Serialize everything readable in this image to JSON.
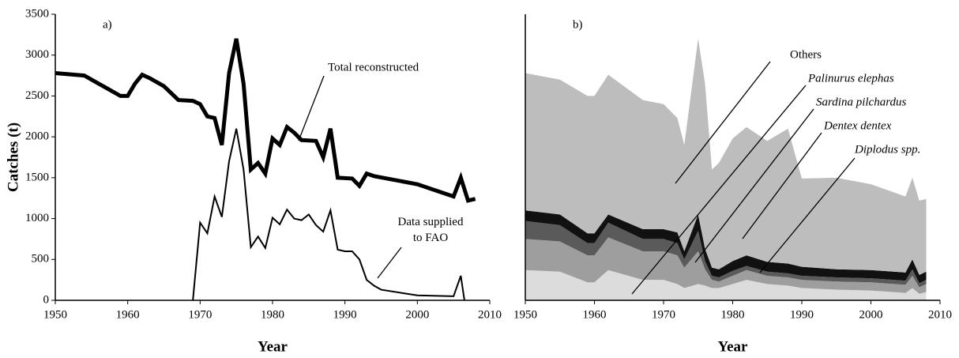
{
  "chart_data": [
    {
      "type": "line",
      "annotation": "a)",
      "xlabel": "Year",
      "ylabel": "Catches (t)",
      "xlim": [
        1950,
        2010
      ],
      "xticks": [
        1950,
        1960,
        1970,
        1980,
        1990,
        2000,
        2010
      ],
      "ylim": [
        0,
        3500
      ],
      "yticks": [
        0,
        500,
        1000,
        1500,
        2000,
        2500,
        3000,
        3500
      ],
      "series": [
        {
          "name": "Total reconstructed",
          "color": "#000000",
          "width": 5,
          "x": [
            1950,
            1954,
            1957,
            1959,
            1960,
            1961,
            1962,
            1963,
            1965,
            1967,
            1969,
            1970,
            1971,
            1972,
            1973,
            1974,
            1975,
            1976,
            1977,
            1978,
            1979,
            1980,
            1981,
            1982,
            1983,
            1984,
            1986,
            1987,
            1988,
            1989,
            1991,
            1992,
            1993,
            1994,
            2000,
            2005,
            2006,
            2007,
            2008
          ],
          "values": [
            2780,
            2750,
            2600,
            2500,
            2500,
            2650,
            2760,
            2720,
            2620,
            2450,
            2440,
            2400,
            2250,
            2230,
            1900,
            2780,
            3200,
            2650,
            1600,
            1680,
            1550,
            1980,
            1900,
            2120,
            2050,
            1960,
            1950,
            1750,
            2100,
            1500,
            1490,
            1400,
            1550,
            1520,
            1420,
            1270,
            1500,
            1220,
            1240
          ]
        },
        {
          "name": "Data supplied to FAO",
          "color": "#000000",
          "width": 2,
          "x": [
            1969,
            1970,
            1971,
            1972,
            1973,
            1974,
            1975,
            1976,
            1977,
            1978,
            1979,
            1980,
            1981,
            1982,
            1983,
            1984,
            1985,
            1986,
            1987,
            1988,
            1989,
            1990,
            1991,
            1992,
            1993,
            1994,
            1995,
            2000,
            2005,
            2006,
            2006.5
          ],
          "values": [
            0,
            950,
            820,
            1270,
            1020,
            1700,
            2100,
            1600,
            650,
            780,
            640,
            1010,
            930,
            1110,
            1000,
            980,
            1050,
            920,
            840,
            1100,
            620,
            600,
            600,
            500,
            250,
            180,
            130,
            60,
            50,
            300,
            0
          ]
        }
      ]
    },
    {
      "type": "stacked_area",
      "annotation": "b)",
      "xlabel": "Year",
      "xlim": [
        1950,
        2010
      ],
      "xticks": [
        1950,
        1960,
        1970,
        1980,
        1990,
        2000,
        2010
      ],
      "ylim": [
        0,
        3500
      ],
      "x": [
        1950,
        1955,
        1959,
        1960,
        1962,
        1967,
        1970,
        1972,
        1973,
        1975,
        1976,
        1977,
        1978,
        1980,
        1982,
        1985,
        1988,
        1990,
        1995,
        2000,
        2005,
        2006,
        2007,
        2008
      ],
      "series": [
        {
          "name": "Diplodus spp.",
          "color": "#dcdcdc",
          "values": [
            370,
            350,
            220,
            220,
            370,
            250,
            250,
            200,
            150,
            200,
            180,
            150,
            150,
            200,
            250,
            200,
            180,
            150,
            130,
            120,
            90,
            150,
            80,
            100
          ]
        },
        {
          "name": "Dentex dentex",
          "color": "#9e9e9e",
          "values": [
            380,
            370,
            330,
            330,
            400,
            350,
            350,
            350,
            250,
            400,
            200,
            100,
            80,
            100,
            120,
            100,
            100,
            100,
            100,
            100,
            100,
            150,
            80,
            100
          ]
        },
        {
          "name": "Sardina pilchardus",
          "color": "#5a5a5a",
          "values": [
            220,
            200,
            150,
            150,
            180,
            150,
            150,
            150,
            100,
            250,
            100,
            50,
            50,
            60,
            50,
            50,
            50,
            50,
            50,
            50,
            50,
            80,
            50,
            50
          ]
        },
        {
          "name": "Palinurus elephas",
          "color": "#111111",
          "values": [
            130,
            130,
            120,
            120,
            100,
            120,
            120,
            130,
            100,
            200,
            150,
            100,
            100,
            120,
            130,
            120,
            120,
            110,
            100,
            100,
            100,
            120,
            100,
            100
          ]
        },
        {
          "name": "Others",
          "color": "#bdbdbd",
          "values": [
            1680,
            1650,
            1680,
            1680,
            1710,
            1580,
            1530,
            1400,
            1300,
            2150,
            2020,
            1200,
            1300,
            1500,
            1570,
            1480,
            1650,
            1080,
            1120,
            1050,
            930,
            1000,
            910,
            890
          ]
        }
      ]
    }
  ]
}
